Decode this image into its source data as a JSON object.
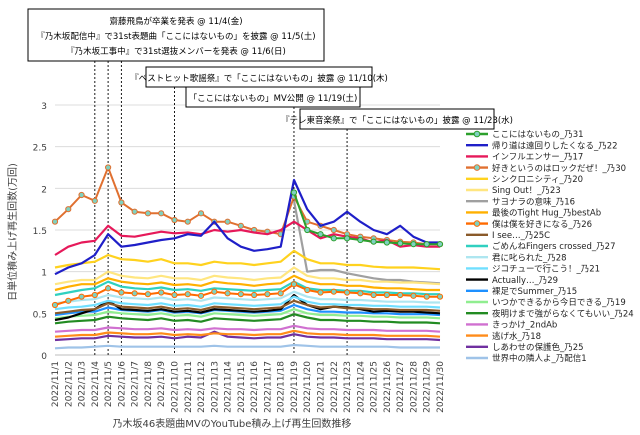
{
  "chart_data": {
    "type": "line",
    "title": "",
    "xlabel": "乃木坂46表題曲MVのYouTube積み上げ再生回数推移",
    "ylabel": "日単位積み上げ再生回数(万回)",
    "ylim": [
      0,
      3
    ],
    "yticks": [
      0,
      0.5,
      1,
      1.5,
      2,
      2.5,
      3
    ],
    "grid": "horizontal",
    "legend_position": "right",
    "categories": [
      "2022/11/1",
      "2022/11/2",
      "2022/11/3",
      "2022/11/4",
      "2022/11/5",
      "2022/11/6",
      "2022/11/7",
      "2022/11/8",
      "2022/11/9",
      "2022/11/10",
      "2022/11/11",
      "2022/11/12",
      "2022/11/13",
      "2022/11/14",
      "2022/11/15",
      "2022/11/16",
      "2022/11/17",
      "2022/11/18",
      "2022/11/19",
      "2022/11/20",
      "2022/11/21",
      "2022/11/22",
      "2022/11/23",
      "2022/11/24",
      "2022/11/25",
      "2022/11/26",
      "2022/11/27",
      "2022/11/28",
      "2022/11/29",
      "2022/11/30"
    ],
    "annotations": [
      {
        "lines": [
          "齋藤飛鳥が卒業を発表 @ 11/4(金)",
          "『乃木坂配信中』で31st表題曲「ここにはないもの」を披露 @ 11/5(土)",
          "『乃木坂工事中』で31st選抜メンバーを発表 @ 11/6(日)"
        ],
        "dates": [
          "2022/11/4",
          "2022/11/5",
          "2022/11/6"
        ]
      },
      {
        "lines": [
          "『ベストヒット歌謡祭』で「ここにはないもの」披露 @ 11/10(木)"
        ],
        "dates": [
          "2022/11/10"
        ]
      },
      {
        "lines": [
          "「ここにはないもの」MV公開 @ 11/19(土)"
        ],
        "dates": [
          "2022/11/19"
        ]
      },
      {
        "lines": [
          "『テレ東音楽祭』で「ここにはないもの」披露 @ 11/23(水)"
        ],
        "dates": [
          "2022/11/23"
        ]
      }
    ],
    "series": [
      {
        "name": "ここにはないもの_乃31",
        "color": "#2ca02c",
        "marker": "circle",
        "values": [
          null,
          null,
          null,
          null,
          null,
          null,
          null,
          null,
          null,
          null,
          null,
          null,
          null,
          null,
          null,
          null,
          null,
          null,
          1.95,
          1.5,
          1.45,
          1.4,
          1.4,
          1.38,
          1.36,
          1.35,
          1.34,
          1.33,
          1.33,
          1.33
        ]
      },
      {
        "name": "帰り道は遠回りしたくなる_乃22",
        "color": "#1f1fc8",
        "marker": "none",
        "values": [
          0.97,
          1.05,
          1.1,
          1.2,
          1.45,
          1.3,
          1.32,
          1.35,
          1.38,
          1.4,
          1.45,
          1.43,
          1.6,
          1.4,
          1.3,
          1.25,
          1.27,
          1.3,
          2.1,
          1.75,
          1.55,
          1.6,
          1.72,
          1.6,
          1.5,
          1.45,
          1.55,
          1.42,
          1.35,
          1.35
        ]
      },
      {
        "name": "インフルエンサー_乃17",
        "color": "#e6195a",
        "marker": "none",
        "values": [
          1.2,
          1.3,
          1.35,
          1.37,
          1.55,
          1.43,
          1.42,
          1.45,
          1.48,
          1.46,
          1.47,
          1.45,
          1.5,
          1.48,
          1.5,
          1.47,
          1.45,
          1.5,
          1.6,
          1.5,
          1.4,
          1.45,
          1.42,
          1.4,
          1.35,
          1.38,
          1.3,
          1.32,
          1.3,
          1.3
        ]
      },
      {
        "name": "好きというのはロックだぜ！_乃30",
        "color": "#e07030",
        "marker": "circle",
        "values": [
          1.6,
          1.75,
          1.92,
          1.85,
          2.25,
          1.83,
          1.72,
          1.7,
          1.7,
          1.62,
          1.6,
          1.7,
          1.6,
          1.6,
          1.55,
          1.5,
          1.48,
          1.45,
          1.9,
          1.6,
          1.55,
          1.5,
          1.45,
          1.42,
          1.4,
          1.38,
          1.36,
          1.35,
          1.33,
          1.33
        ]
      },
      {
        "name": "シンクロニシティ_乃20",
        "color": "#ffd21e",
        "marker": "none",
        "values": [
          1.05,
          1.08,
          1.1,
          1.12,
          1.2,
          1.15,
          1.14,
          1.12,
          1.15,
          1.1,
          1.1,
          1.08,
          1.12,
          1.1,
          1.1,
          1.08,
          1.1,
          1.12,
          1.25,
          1.15,
          1.1,
          1.1,
          1.08,
          1.08,
          1.06,
          1.05,
          1.05,
          1.05,
          1.04,
          1.03
        ]
      },
      {
        "name": "Sing Out！_乃23",
        "color": "#ffe680",
        "marker": "none",
        "values": [
          0.85,
          0.88,
          0.9,
          0.9,
          1.0,
          0.95,
          0.93,
          0.92,
          0.95,
          0.92,
          0.92,
          0.9,
          0.95,
          0.93,
          0.92,
          0.9,
          0.92,
          0.93,
          1.05,
          0.95,
          0.92,
          0.92,
          0.9,
          0.9,
          0.88,
          0.88,
          0.87,
          0.87,
          0.86,
          0.85
        ]
      },
      {
        "name": "サヨナラの意味_乃16",
        "color": "#a0a0a0",
        "marker": "none",
        "values": [
          null,
          null,
          null,
          null,
          null,
          null,
          null,
          null,
          null,
          null,
          null,
          null,
          null,
          null,
          null,
          null,
          null,
          null,
          1.85,
          1.0,
          1.02,
          1.02,
          0.98,
          0.95,
          0.92,
          0.9,
          0.9,
          0.88,
          0.87,
          0.86
        ]
      },
      {
        "name": "最後のTight Hug_乃bestAb",
        "color": "#ffb000",
        "marker": "none",
        "values": [
          0.78,
          0.82,
          0.85,
          0.85,
          0.92,
          0.88,
          0.86,
          0.85,
          0.87,
          0.84,
          0.85,
          0.83,
          0.88,
          0.86,
          0.85,
          0.83,
          0.85,
          0.86,
          0.95,
          0.88,
          0.85,
          0.85,
          0.83,
          0.83,
          0.81,
          0.8,
          0.8,
          0.79,
          0.78,
          0.78
        ]
      },
      {
        "name": "僕は僕を好きになる_乃26",
        "color": "#ff6a00",
        "marker": "circle",
        "values": [
          0.6,
          0.65,
          0.7,
          0.72,
          0.8,
          0.75,
          0.74,
          0.73,
          0.75,
          0.72,
          0.73,
          0.71,
          0.76,
          0.74,
          0.73,
          0.72,
          0.73,
          0.74,
          0.85,
          0.78,
          0.75,
          0.76,
          0.75,
          0.74,
          0.72,
          0.72,
          0.72,
          0.71,
          0.7,
          0.7
        ]
      },
      {
        "name": "I see…_乃25C",
        "color": "#8a5a2a",
        "marker": "none",
        "values": [
          0.5,
          0.52,
          0.54,
          0.55,
          0.62,
          0.58,
          0.57,
          0.56,
          0.58,
          0.55,
          0.56,
          0.54,
          0.58,
          0.57,
          0.56,
          0.55,
          0.56,
          0.57,
          0.65,
          0.6,
          0.57,
          0.58,
          0.56,
          0.56,
          0.55,
          0.55,
          0.54,
          0.54,
          0.54,
          0.53
        ]
      },
      {
        "name": "ごめんねFingers crossed_乃27",
        "color": "#30d0c0",
        "marker": "none",
        "values": [
          0.72,
          0.75,
          0.78,
          0.8,
          0.88,
          0.82,
          0.8,
          0.79,
          0.81,
          0.78,
          0.79,
          0.77,
          0.8,
          0.79,
          0.78,
          0.77,
          0.78,
          0.79,
          0.88,
          0.8,
          0.78,
          0.78,
          0.77,
          0.77,
          0.75,
          0.75,
          0.74,
          0.74,
          0.73,
          0.73
        ]
      },
      {
        "name": "君に叱られた_乃28",
        "color": "#aee6f0",
        "marker": "none",
        "values": [
          0.62,
          0.64,
          0.66,
          0.67,
          0.72,
          0.69,
          0.68,
          0.67,
          0.69,
          0.66,
          0.67,
          0.65,
          0.69,
          0.68,
          0.67,
          0.66,
          0.67,
          0.68,
          0.76,
          0.7,
          0.67,
          0.67,
          0.66,
          0.66,
          0.65,
          0.64,
          0.64,
          0.64,
          0.63,
          0.63
        ]
      },
      {
        "name": "ジコチューで行こう！_乃21",
        "color": "#70dfff",
        "marker": "none",
        "values": [
          0.55,
          0.57,
          0.58,
          0.6,
          0.65,
          0.62,
          0.61,
          0.6,
          0.62,
          0.59,
          0.6,
          0.58,
          0.62,
          0.61,
          0.6,
          0.59,
          0.6,
          0.61,
          0.7,
          0.64,
          0.61,
          0.61,
          0.6,
          0.6,
          0.59,
          0.59,
          0.58,
          0.58,
          0.58,
          0.57
        ]
      },
      {
        "name": "Actually…_乃29",
        "color": "#000000",
        "marker": "none",
        "values": [
          0.42,
          0.45,
          0.5,
          0.55,
          0.65,
          0.55,
          0.54,
          0.53,
          0.55,
          0.52,
          0.53,
          0.51,
          0.55,
          0.54,
          0.53,
          0.52,
          0.53,
          0.55,
          0.72,
          0.6,
          0.55,
          0.58,
          0.57,
          0.55,
          0.52,
          0.53,
          0.52,
          0.52,
          0.51,
          0.5
        ]
      },
      {
        "name": "裸足でSummer_乃15",
        "color": "#1e90ff",
        "marker": "none",
        "values": [
          0.48,
          0.5,
          0.52,
          0.52,
          0.57,
          0.54,
          0.53,
          0.52,
          0.54,
          0.51,
          0.52,
          0.5,
          0.54,
          0.53,
          0.52,
          0.51,
          0.52,
          0.53,
          0.6,
          0.55,
          0.52,
          0.52,
          0.51,
          0.51,
          0.5,
          0.5,
          0.49,
          0.49,
          0.49,
          0.48
        ]
      },
      {
        "name": "いつかできるから今日できる_乃19",
        "color": "#90ee90",
        "marker": "none",
        "values": [
          0.44,
          0.46,
          0.47,
          0.48,
          0.52,
          0.5,
          0.49,
          0.48,
          0.5,
          0.47,
          0.48,
          0.46,
          0.5,
          0.49,
          0.48,
          0.47,
          0.48,
          0.49,
          0.55,
          0.5,
          0.48,
          0.48,
          0.47,
          0.47,
          0.46,
          0.46,
          0.45,
          0.45,
          0.45,
          0.44
        ]
      },
      {
        "name": "夜明けまで強がらなくてもいい_乃24",
        "color": "#228b22",
        "marker": "none",
        "values": [
          0.38,
          0.4,
          0.41,
          0.42,
          0.46,
          0.44,
          0.43,
          0.42,
          0.44,
          0.41,
          0.42,
          0.4,
          0.44,
          0.43,
          0.42,
          0.41,
          0.42,
          0.43,
          0.49,
          0.45,
          0.42,
          0.42,
          0.41,
          0.41,
          0.4,
          0.4,
          0.39,
          0.39,
          0.39,
          0.38
        ]
      },
      {
        "name": "きっかけ_2ndAb",
        "color": "#d070d0",
        "marker": "none",
        "values": [
          0.28,
          0.29,
          0.3,
          0.3,
          0.33,
          0.32,
          0.31,
          0.31,
          0.32,
          0.3,
          0.31,
          0.3,
          0.32,
          0.31,
          0.31,
          0.3,
          0.31,
          0.31,
          0.35,
          0.32,
          0.31,
          0.31,
          0.3,
          0.3,
          0.3,
          0.29,
          0.29,
          0.29,
          0.29,
          0.28
        ]
      },
      {
        "name": "逃げ水_乃18",
        "color": "#ff8c1a",
        "marker": "none",
        "values": [
          0.22,
          0.23,
          0.24,
          0.24,
          0.27,
          0.26,
          0.25,
          0.25,
          0.26,
          0.24,
          0.25,
          0.24,
          0.26,
          0.25,
          0.25,
          0.24,
          0.25,
          0.25,
          0.29,
          0.26,
          0.25,
          0.25,
          0.24,
          0.24,
          0.24,
          0.23,
          0.23,
          0.23,
          0.23,
          0.22
        ]
      },
      {
        "name": "しあわせの保護色_乃25",
        "color": "#7030a0",
        "marker": "none",
        "values": [
          0.18,
          0.19,
          0.2,
          0.2,
          0.23,
          0.22,
          0.21,
          0.21,
          0.22,
          0.2,
          0.22,
          0.21,
          0.28,
          0.22,
          0.21,
          0.2,
          0.21,
          0.21,
          0.25,
          0.22,
          0.21,
          0.21,
          0.2,
          0.2,
          0.2,
          0.19,
          0.19,
          0.19,
          0.19,
          0.18
        ]
      },
      {
        "name": "世界中の隣人よ_乃配信1",
        "color": "#9fc3e8",
        "marker": "none",
        "values": [
          0.08,
          0.09,
          0.09,
          0.1,
          0.11,
          0.1,
          0.1,
          0.1,
          0.1,
          0.1,
          0.1,
          0.1,
          0.11,
          0.1,
          0.1,
          0.1,
          0.1,
          0.1,
          0.12,
          0.11,
          0.1,
          0.1,
          0.1,
          0.1,
          0.1,
          0.1,
          0.09,
          0.09,
          0.09,
          0.09
        ]
      }
    ]
  }
}
